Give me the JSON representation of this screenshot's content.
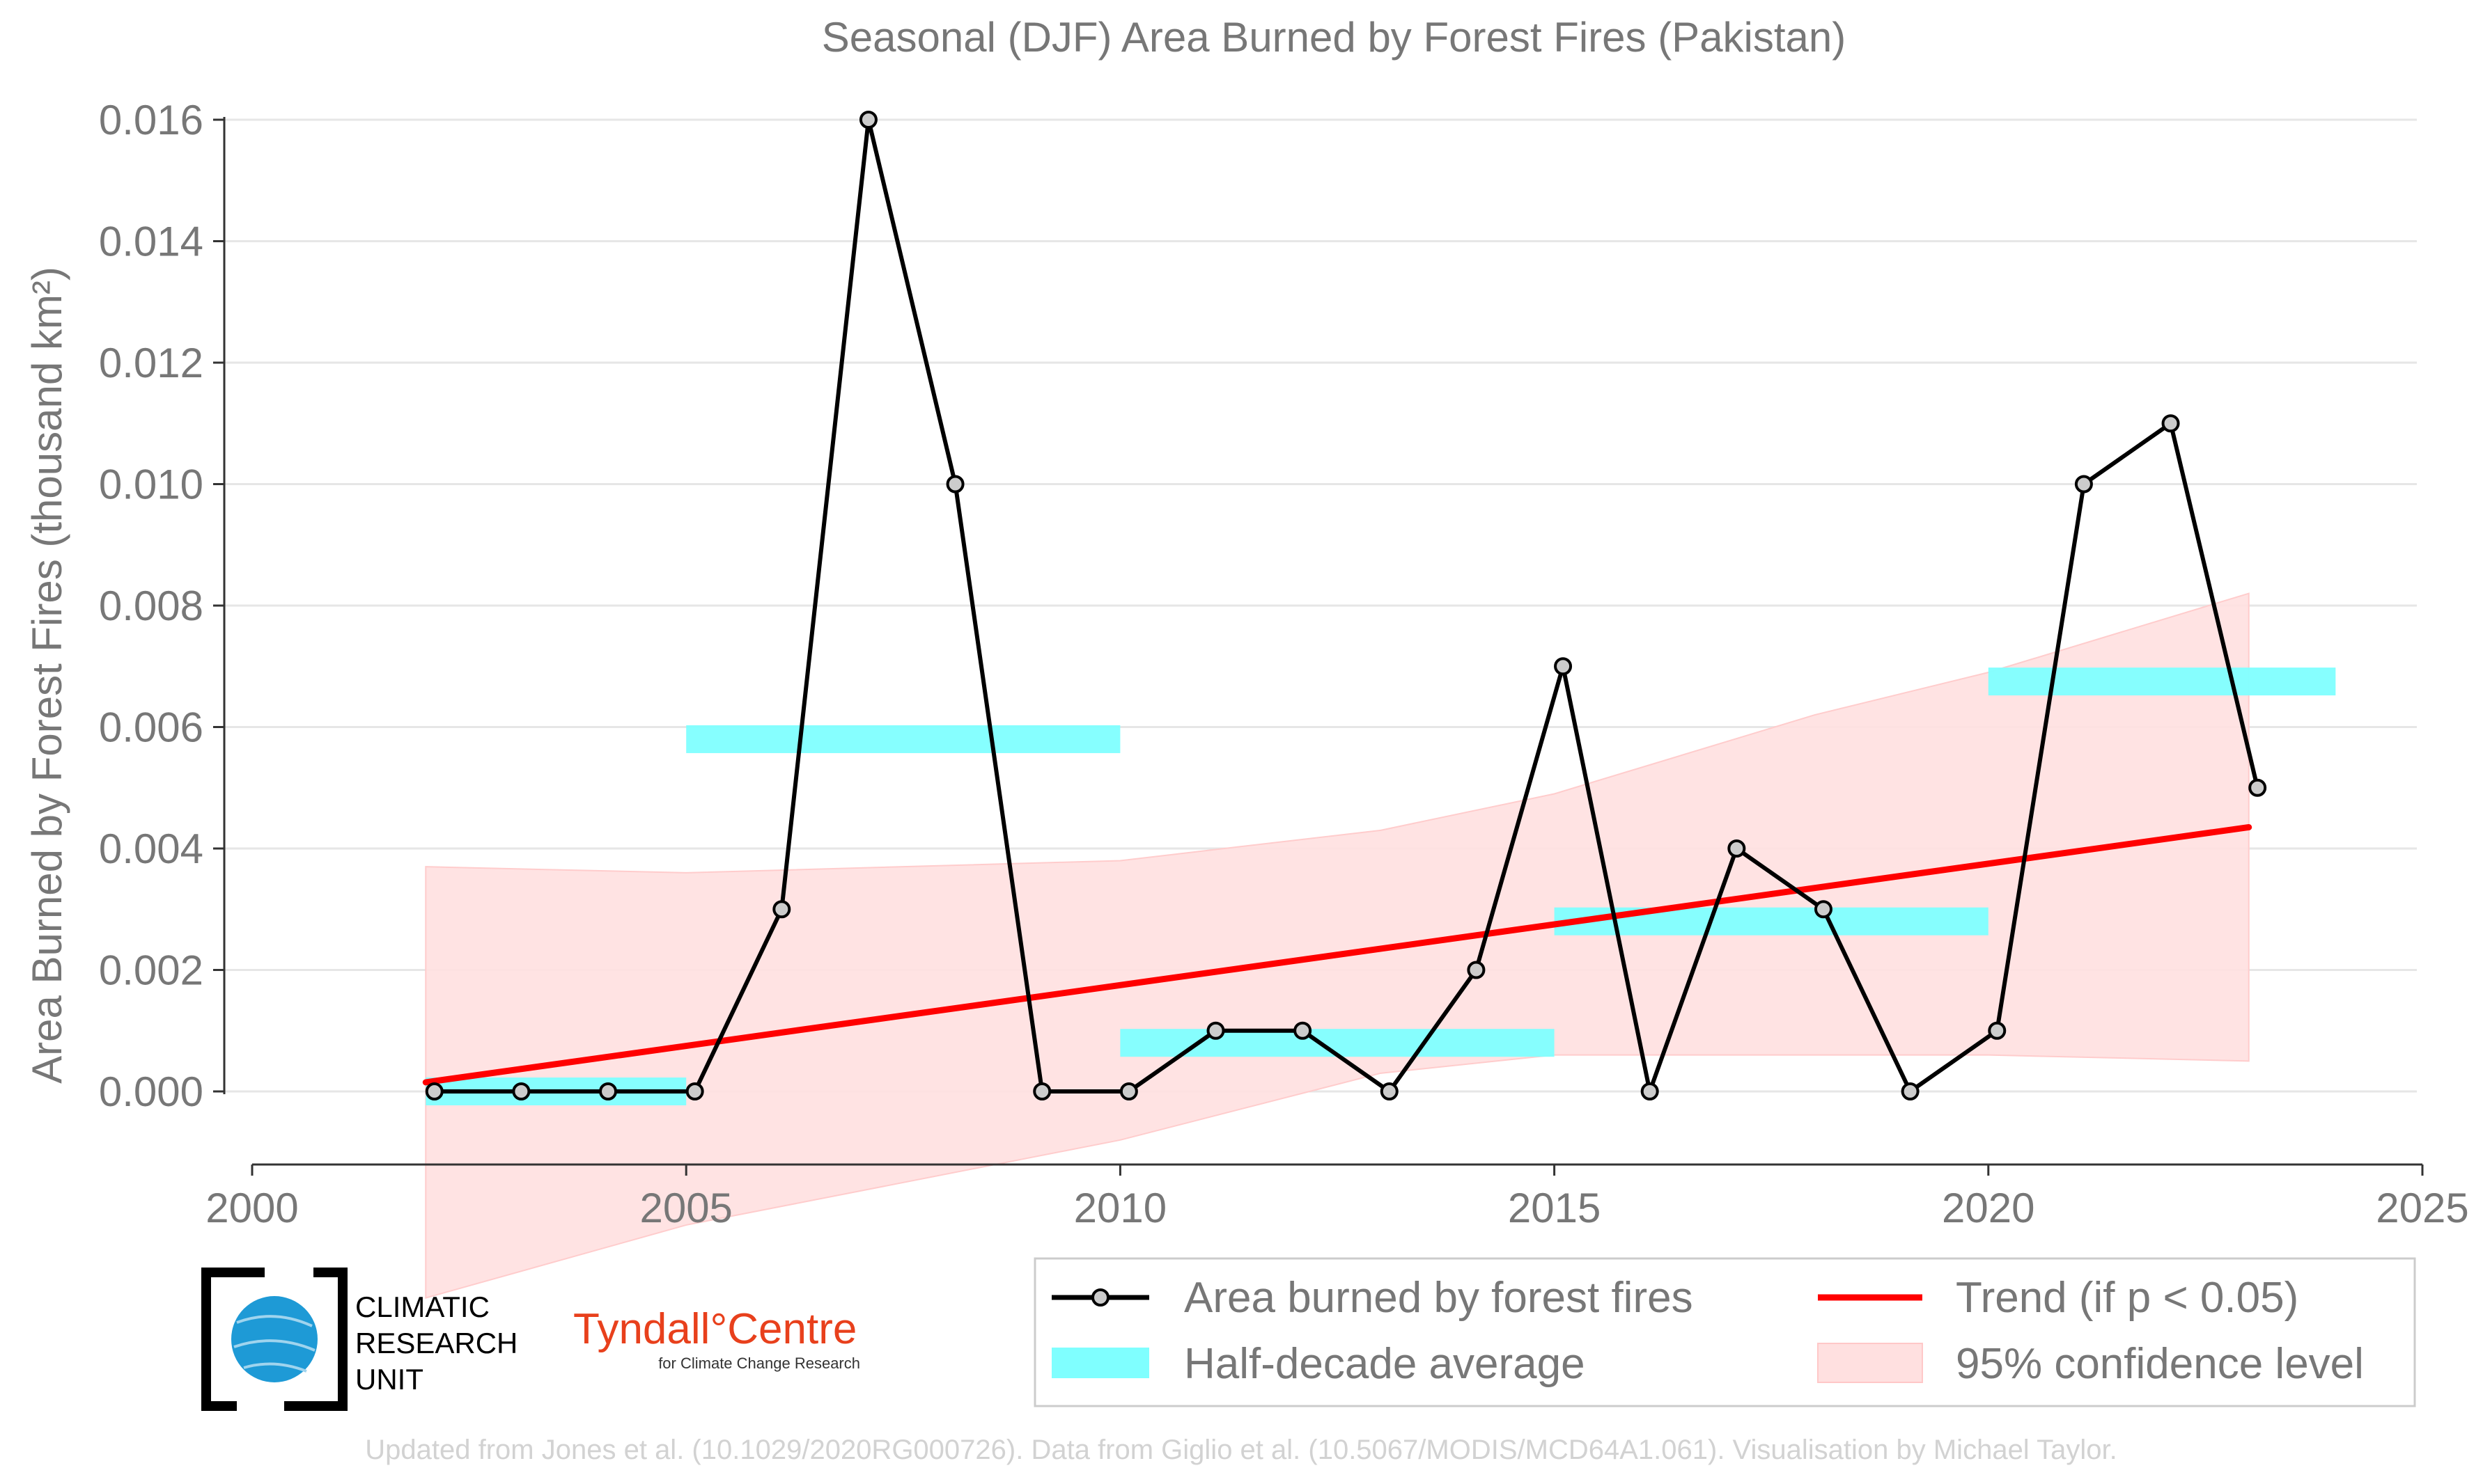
{
  "chart_data": {
    "type": "line",
    "title": "Seasonal (DJF) Area Burned by Forest Fires (Pakistan)",
    "ylabel": "Area Burned by Forest Fires (thousand km²)",
    "xlabel": "",
    "xlim": [
      2000,
      2025
    ],
    "ylim": [
      -0.0012,
      0.0165
    ],
    "x_ticks": [
      2000,
      2005,
      2010,
      2015,
      2020,
      2025
    ],
    "y_ticks": [
      0.0,
      0.002,
      0.004,
      0.006,
      0.008,
      0.01,
      0.012,
      0.014,
      0.016
    ],
    "y_tick_labels": [
      "0.000",
      "0.002",
      "0.004",
      "0.006",
      "0.008",
      "0.010",
      "0.012",
      "0.014",
      "0.016"
    ],
    "grid": "horizontal",
    "series": [
      {
        "name": "Area burned by forest fires",
        "color": "#000000",
        "x": [
          2002,
          2003,
          2004,
          2005,
          2006,
          2007,
          2008,
          2009,
          2010,
          2011,
          2012,
          2013,
          2014,
          2015,
          2016,
          2017,
          2018,
          2019,
          2020,
          2021,
          2022,
          2023
        ],
        "y": [
          0.0,
          0.0,
          0.0,
          0.0,
          0.003,
          0.016,
          0.01,
          0.0,
          0.0,
          0.001,
          0.001,
          0.0,
          0.002,
          0.007,
          0.0,
          0.004,
          0.003,
          0.0,
          0.001,
          0.01,
          0.011,
          0.005
        ]
      },
      {
        "name": "Half-decade average",
        "color": "#7fffff",
        "segments": [
          {
            "x0": 2002,
            "x1": 2005,
            "y": 0.0
          },
          {
            "x0": 2005,
            "x1": 2010,
            "y": 0.0058
          },
          {
            "x0": 2010,
            "x1": 2015,
            "y": 0.0008
          },
          {
            "x0": 2015,
            "x1": 2020,
            "y": 0.0028
          },
          {
            "x0": 2020,
            "x1": 2024,
            "y": 0.00675
          }
        ]
      },
      {
        "name": "Trend (if p < 0.05)",
        "color": "#ff0000",
        "x": [
          2002,
          2023
        ],
        "y": [
          0.00015,
          0.00435
        ]
      },
      {
        "name": "95% confidence level",
        "color": "#ffd6d6",
        "x": [
          2002,
          2005,
          2010,
          2013,
          2015,
          2018,
          2020,
          2023
        ],
        "lower": [
          -0.0034,
          -0.0022,
          -0.0008,
          0.0003,
          0.0006,
          0.0006,
          0.0006,
          0.0005
        ],
        "upper": [
          0.0037,
          0.0036,
          0.0038,
          0.0043,
          0.0049,
          0.0062,
          0.0069,
          0.0082
        ]
      }
    ],
    "legend": {
      "position": "bottom-right",
      "entries": [
        "Area burned by forest fires",
        "Trend (if p < 0.05)",
        "Half-decade average",
        "95% confidence level"
      ]
    }
  },
  "logos": {
    "cru_lines": [
      "CLIMATIC",
      "RESEARCH",
      "UNIT"
    ],
    "tyndall_main": "Tyndall°Centre",
    "tyndall_sub": "for Climate Change Research"
  },
  "credit": "Updated from Jones et al. (10.1029/2020RG000726). Data from Giglio et al. (10.5067/MODIS/MCD64A1.061). Visualisation by Michael Taylor."
}
